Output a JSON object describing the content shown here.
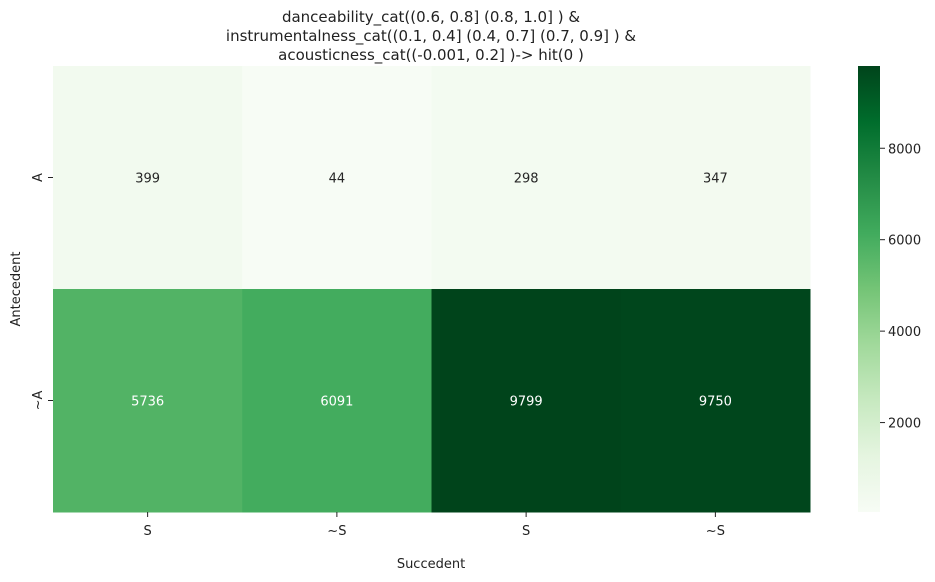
{
  "chart_data": {
    "type": "heatmap",
    "title": [
      "danceability_cat((0.6, 0.8] (0.8, 1.0] ) &",
      "instrumentalness_cat((0.1, 0.4] (0.4, 0.7] (0.7, 0.9] ) &",
      "acousticness_cat((-0.001, 0.2] )-> hit(0 )"
    ],
    "xlabel": "Succedent",
    "ylabel": "Antecedent",
    "x_categories": [
      "S",
      "~S",
      "S",
      "~S"
    ],
    "y_categories": [
      "A",
      "~A"
    ],
    "values": [
      [
        399,
        44,
        298,
        347
      ],
      [
        5736,
        6091,
        9799,
        9750
      ]
    ],
    "colormap": "Greens",
    "colorbar": {
      "ticks": [
        2000,
        4000,
        6000,
        8000
      ],
      "range": [
        44,
        9799
      ]
    },
    "colors": {
      "low": "#f7fcf5",
      "high": "#00441b",
      "text_dark": "#262626",
      "text_light": "#ffffff"
    }
  }
}
